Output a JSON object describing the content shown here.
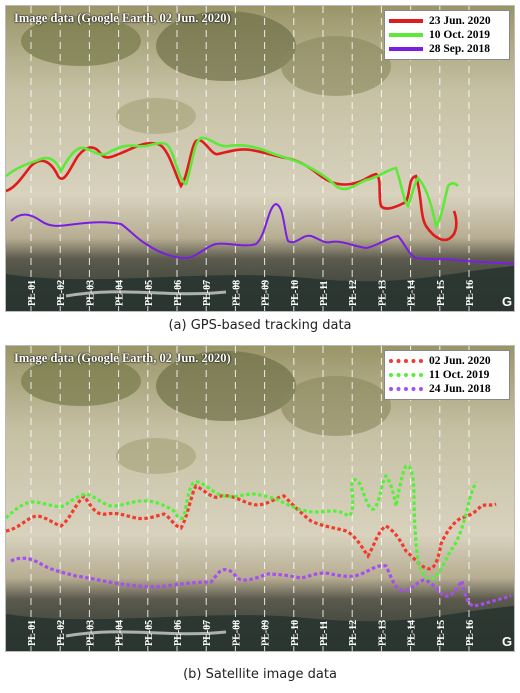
{
  "panels": [
    {
      "id": "a",
      "image_label": "Image data (Google Earth, 02 Jun. 2020)",
      "caption": "(a) GPS-based tracking data",
      "line_style": "solid",
      "legend": [
        {
          "label": "23 Jun. 2020",
          "color": "#e01b1b"
        },
        {
          "label": "10 Oct. 2019",
          "color": "#5de83a"
        },
        {
          "label": "28 Sep. 2018",
          "color": "#7a1fe0"
        }
      ]
    },
    {
      "id": "b",
      "image_label": "Image data (Google Earth, 02 Jun. 2020)",
      "caption": "(b) Satellite image data",
      "line_style": "dotted",
      "legend": [
        {
          "label": "02 Jun. 2020",
          "color": "#f03c2c"
        },
        {
          "label": "11 Oct. 2019",
          "color": "#56f03c"
        },
        {
          "label": "24 Jun. 2018",
          "color": "#a64ff0"
        }
      ]
    }
  ],
  "profile_lines": [
    "PL-01",
    "PL-02",
    "PL-03",
    "PL-04",
    "PL-05",
    "PL-06",
    "PL-07",
    "PL-08",
    "PL-09",
    "PL-10",
    "PL-11",
    "PL-12",
    "PL-13",
    "PL-14",
    "PL-15",
    "PL-16"
  ],
  "corner_mark": "G",
  "colors": {
    "water": "#2e3a34",
    "beach": "#cdc6b0",
    "vegetation": "#8d8a63"
  }
}
